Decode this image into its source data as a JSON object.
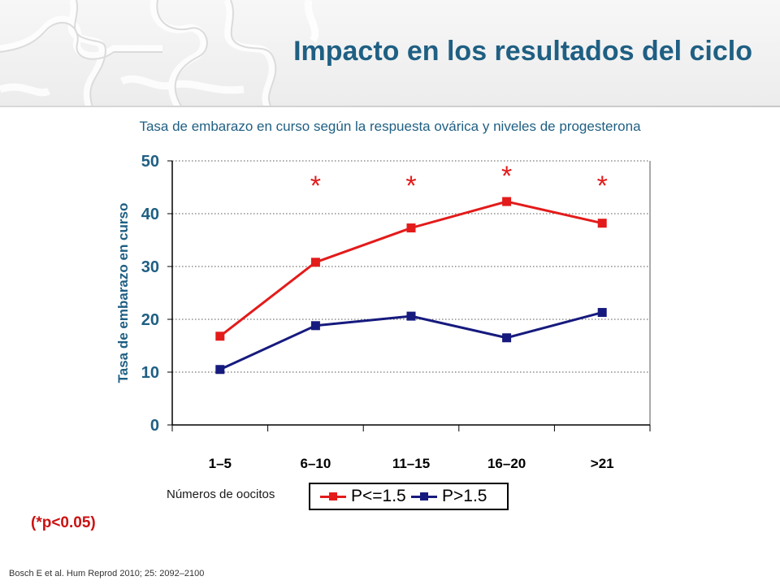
{
  "header": {
    "title": "Impacto en los resultados del ciclo",
    "subtitle": "Tasa de embarazo en curso según la respuesta ovárica y niveles de progesterona"
  },
  "chart_data": {
    "type": "line",
    "categories": [
      "1–5",
      "6–10",
      "11–15",
      "16–20",
      ">21"
    ],
    "series": [
      {
        "name": "P<=1.5",
        "color": "#e31b1b",
        "values": [
          16.8,
          30.8,
          37.3,
          42.3,
          38.2
        ]
      },
      {
        "name": "P>1.5",
        "color": "#161a7e",
        "values": [
          10.5,
          18.8,
          20.6,
          16.5,
          21.3
        ]
      }
    ],
    "ylabel": "Tasa de embarazo en curso",
    "xlabel": "Números de oocitos",
    "ylim": [
      0,
      50
    ],
    "yticks": [
      "0",
      "10",
      "20",
      "30",
      "40",
      "50"
    ],
    "grid": true,
    "grid_style": "dotted",
    "legend_position": "bottom",
    "significance_marker": "*",
    "significant_categories": [
      1,
      2,
      3,
      4
    ]
  },
  "footnote": "(*p<0.05)",
  "citation": "Bosch E et al. Hum Reprod 2010; 25: 2092–2100"
}
